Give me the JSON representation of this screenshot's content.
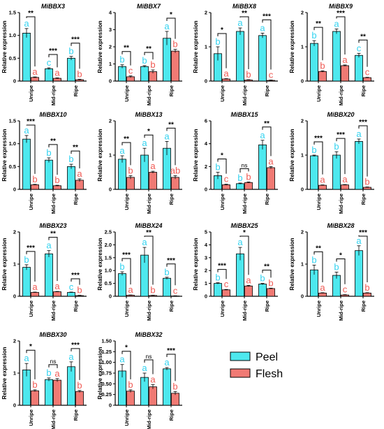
{
  "colors": {
    "peel": "#4DE8EE",
    "flesh": "#F07A74",
    "peel_letter": "#33D3F0",
    "flesh_letter": "#F05A54"
  },
  "legend": {
    "peel": "Peel",
    "flesh": "Flesh"
  },
  "chart_data": [
    {
      "type": "bar",
      "title": "MiBBX3",
      "ylabel": "Relative expression",
      "categories": [
        "Unripe",
        "Mid-ripe",
        "Ripe"
      ],
      "ylim": [
        0,
        1.5
      ],
      "yticks": [
        0,
        0.5,
        1.0,
        1.5
      ],
      "tick_labels": [
        "0",
        "0.5",
        "1.0",
        "1.5"
      ],
      "series": [
        {
          "name": "Peel",
          "values": [
            1.05,
            0.27,
            0.5
          ],
          "errors": [
            0.1,
            0.02,
            0.04
          ],
          "letters": [
            "a",
            "c",
            "b"
          ]
        },
        {
          "name": "Flesh",
          "values": [
            0.08,
            0.06,
            0.03
          ],
          "errors": [
            0.01,
            0.01,
            0.01
          ],
          "letters": [
            "a",
            "a",
            "b"
          ]
        }
      ],
      "significance": [
        "**",
        "***",
        "***"
      ]
    },
    {
      "type": "bar",
      "title": "MiBBX7",
      "ylabel": "Relative expression",
      "categories": [
        "Unripe",
        "Mid-ripe",
        "Ripe"
      ],
      "ylim": [
        0,
        4
      ],
      "yticks": [
        0,
        1,
        2,
        3,
        4
      ],
      "tick_labels": [
        "0",
        "1",
        "2",
        "3",
        "4"
      ],
      "series": [
        {
          "name": "Peel",
          "values": [
            0.85,
            0.85,
            2.5
          ],
          "errors": [
            0.1,
            0.05,
            0.4
          ],
          "letters": [
            "b",
            "b",
            "a"
          ]
        },
        {
          "name": "Flesh",
          "values": [
            0.25,
            0.55,
            1.75
          ],
          "errors": [
            0.05,
            0.1,
            0.1
          ],
          "letters": [
            "c",
            "b",
            "b"
          ]
        }
      ],
      "significance": [
        "**",
        "**",
        "*"
      ]
    },
    {
      "type": "bar",
      "title": "MiBBX8",
      "ylabel": "Relative expression",
      "categories": [
        "Unripe",
        "Mid-ripe",
        "Ripe"
      ],
      "ylim": [
        0,
        2
      ],
      "yticks": [
        0,
        1,
        2
      ],
      "tick_labels": [
        "0",
        "1",
        "2"
      ],
      "series": [
        {
          "name": "Peel",
          "values": [
            0.8,
            1.45,
            1.33
          ],
          "errors": [
            0.2,
            0.1,
            0.07
          ],
          "letters": [
            "b",
            "a",
            "a"
          ]
        },
        {
          "name": "Flesh",
          "values": [
            0.06,
            0.03,
            0.02
          ],
          "errors": [
            0.01,
            0.01,
            0.01
          ],
          "letters": [
            "a",
            "b",
            "c"
          ]
        }
      ],
      "significance": [
        "*",
        "**",
        "***"
      ]
    },
    {
      "type": "bar",
      "title": "MiBBX9",
      "ylabel": "Relative expression",
      "categories": [
        "Unripe",
        "Mid-ripe",
        "Ripe"
      ],
      "ylim": [
        0,
        2
      ],
      "yticks": [
        0,
        1,
        2
      ],
      "tick_labels": [
        "0",
        "1",
        "2"
      ],
      "series": [
        {
          "name": "Peel",
          "values": [
            1.1,
            1.45,
            0.75
          ],
          "errors": [
            0.08,
            0.07,
            0.06
          ],
          "letters": [
            "b",
            "a",
            "c"
          ]
        },
        {
          "name": "Flesh",
          "values": [
            0.28,
            0.45,
            0.1
          ],
          "errors": [
            0.02,
            0.02,
            0.01
          ],
          "letters": [
            "b",
            "a",
            "c"
          ]
        }
      ],
      "significance": [
        "**",
        "***",
        "**"
      ]
    },
    {
      "type": "bar",
      "title": "MiBBX10",
      "ylabel": "Relative expression",
      "categories": [
        "Unripe",
        "Mid-ripe",
        "Ripe"
      ],
      "ylim": [
        0,
        1.5
      ],
      "yticks": [
        0,
        0.5,
        1.0,
        1.5
      ],
      "tick_labels": [
        "0",
        "0.5",
        "1.0",
        "1.5"
      ],
      "series": [
        {
          "name": "Peel",
          "values": [
            1.1,
            0.64,
            0.5
          ],
          "errors": [
            0.08,
            0.05,
            0.05
          ],
          "letters": [
            "a",
            "b",
            "b"
          ]
        },
        {
          "name": "Flesh",
          "values": [
            0.1,
            0.08,
            0.2
          ],
          "errors": [
            0.01,
            0.01,
            0.03
          ],
          "letters": [
            "b",
            "b",
            "a"
          ]
        }
      ],
      "significance": [
        "***",
        "**",
        "**"
      ]
    },
    {
      "type": "bar",
      "title": "MiBBX13",
      "ylabel": "Relative expression",
      "categories": [
        "Unripe",
        "Mid-ripe",
        "Ripe"
      ],
      "ylim": [
        0,
        2
      ],
      "yticks": [
        0,
        1,
        2
      ],
      "tick_labels": [
        "0",
        "1",
        "2"
      ],
      "series": [
        {
          "name": "Peel",
          "values": [
            0.88,
            1.0,
            1.2
          ],
          "errors": [
            0.1,
            0.2,
            0.2
          ],
          "letters": [
            "a",
            "a",
            "a"
          ]
        },
        {
          "name": "Flesh",
          "values": [
            0.35,
            0.5,
            0.35
          ],
          "errors": [
            0.05,
            0.03,
            0.05
          ],
          "letters": [
            "b",
            "a",
            "ab"
          ]
        }
      ],
      "significance": [
        "**",
        "*",
        "**"
      ]
    },
    {
      "type": "bar",
      "title": "MiBBX15",
      "ylabel": "Relative expression",
      "categories": [
        "Unripe",
        "Mid-ripe",
        "Ripe"
      ],
      "ylim": [
        0,
        6
      ],
      "yticks": [
        0,
        2,
        4,
        6
      ],
      "tick_labels": [
        "0",
        "2",
        "4",
        "6"
      ],
      "series": [
        {
          "name": "Peel",
          "values": [
            1.2,
            0.5,
            3.9
          ],
          "errors": [
            0.3,
            0.05,
            0.4
          ],
          "letters": [
            "b",
            "b",
            "a"
          ]
        },
        {
          "name": "Flesh",
          "values": [
            0.4,
            0.6,
            1.9
          ],
          "errors": [
            0.05,
            0.05,
            0.1
          ],
          "letters": [
            "c",
            "b",
            "a"
          ]
        }
      ],
      "significance": [
        "*",
        "ns",
        "**"
      ]
    },
    {
      "type": "bar",
      "title": "MiBBX20",
      "ylabel": "Relative expression",
      "categories": [
        "Unripe",
        "Mid-ripe",
        "Ripe"
      ],
      "ylim": [
        0,
        2
      ],
      "yticks": [
        0,
        1,
        2
      ],
      "tick_labels": [
        "0",
        "1",
        "2"
      ],
      "series": [
        {
          "name": "Peel",
          "values": [
            0.98,
            1.0,
            1.4
          ],
          "errors": [
            0.02,
            0.1,
            0.07
          ],
          "letters": [
            "b",
            "b",
            "a"
          ]
        },
        {
          "name": "Flesh",
          "values": [
            0.12,
            0.13,
            0.06
          ],
          "errors": [
            0.01,
            0.01,
            0.01
          ],
          "letters": [
            "a",
            "a",
            "b"
          ]
        }
      ],
      "significance": [
        "***",
        "***",
        "***"
      ]
    },
    {
      "type": "bar",
      "title": "MiBBX23",
      "ylabel": "Relative expression",
      "categories": [
        "Unripe",
        "Mid-ripe",
        "Ripe"
      ],
      "ylim": [
        0,
        2
      ],
      "yticks": [
        0,
        1,
        2
      ],
      "tick_labels": [
        "0",
        "1",
        "2"
      ],
      "series": [
        {
          "name": "Peel",
          "values": [
            0.9,
            1.32,
            0.12
          ],
          "errors": [
            0.08,
            0.1,
            0.01
          ],
          "letters": [
            "b",
            "a",
            "c"
          ]
        },
        {
          "name": "Flesh",
          "values": [
            0.12,
            0.14,
            0.02
          ],
          "errors": [
            0.01,
            0.01,
            0.01
          ],
          "letters": [
            "a",
            "a",
            "b"
          ]
        }
      ],
      "significance": [
        "***",
        "**",
        "***"
      ]
    },
    {
      "type": "bar",
      "title": "MiBBX24",
      "ylabel": "Relative expression",
      "categories": [
        "Unripe",
        "Mid-ripe",
        "Ripe"
      ],
      "ylim": [
        0,
        2.5
      ],
      "yticks": [
        0,
        0.5,
        1.0,
        1.5,
        2.0,
        2.5
      ],
      "tick_labels": [
        "0",
        "0.5",
        "1.0",
        "1.5",
        "2.0",
        "2.5"
      ],
      "series": [
        {
          "name": "Peel",
          "values": [
            0.88,
            1.6,
            0.7
          ],
          "errors": [
            0.07,
            0.3,
            0.04
          ],
          "letters": [
            "b",
            "a",
            "b"
          ]
        },
        {
          "name": "Flesh",
          "values": [
            0.04,
            0.03,
            0.01
          ],
          "errors": [
            0.01,
            0.01,
            0.01
          ],
          "letters": [
            "a",
            "b",
            "c"
          ]
        }
      ],
      "significance": [
        "***",
        "**",
        "***"
      ]
    },
    {
      "type": "bar",
      "title": "MiBBX25",
      "ylabel": "Relative expression",
      "categories": [
        "Unripe",
        "Mid-ripe",
        "Ripe"
      ],
      "ylim": [
        0,
        5
      ],
      "yticks": [
        0,
        1,
        2,
        3,
        4,
        5
      ],
      "tick_labels": [
        "0",
        "1",
        "2",
        "3",
        "4",
        "5"
      ],
      "series": [
        {
          "name": "Peel",
          "values": [
            1.0,
            3.3,
            0.95
          ],
          "errors": [
            0.05,
            0.5,
            0.05
          ],
          "letters": [
            "b",
            "a",
            "b"
          ]
        },
        {
          "name": "Flesh",
          "values": [
            0.5,
            0.8,
            0.6
          ],
          "errors": [
            0.03,
            0.05,
            0.03
          ],
          "letters": [
            "c",
            "a",
            "b"
          ]
        }
      ],
      "significance": [
        "***",
        "*",
        "**"
      ]
    },
    {
      "type": "bar",
      "title": "MiBBX28",
      "ylabel": "Relative expression",
      "categories": [
        "Unripe",
        "Mid-ripe",
        "Ripe"
      ],
      "ylim": [
        0,
        2
      ],
      "yticks": [
        0,
        1,
        2
      ],
      "tick_labels": [
        "0",
        "1",
        "2"
      ],
      "series": [
        {
          "name": "Peel",
          "values": [
            0.82,
            0.65,
            1.42
          ],
          "errors": [
            0.15,
            0.1,
            0.15
          ],
          "letters": [
            "b",
            "b",
            "a"
          ]
        },
        {
          "name": "Flesh",
          "values": [
            0.1,
            0.04,
            0.1
          ],
          "errors": [
            0.01,
            0.01,
            0.01
          ],
          "letters": [
            "a",
            "c",
            "b"
          ]
        }
      ],
      "significance": [
        "**",
        "*",
        "***"
      ]
    },
    {
      "type": "bar",
      "title": "MiBBX30",
      "ylabel": "Relative expression",
      "categories": [
        "Unripe",
        "Mid-ripe",
        "Ripe"
      ],
      "ylim": [
        0,
        2
      ],
      "yticks": [
        0,
        1,
        2
      ],
      "tick_labels": [
        "0",
        "1",
        "2"
      ],
      "series": [
        {
          "name": "Peel",
          "values": [
            1.1,
            0.8,
            1.2
          ],
          "errors": [
            0.2,
            0.05,
            0.15
          ],
          "letters": [
            "a",
            "b",
            "a"
          ]
        },
        {
          "name": "Flesh",
          "values": [
            0.45,
            0.78,
            0.43
          ],
          "errors": [
            0.03,
            0.05,
            0.03
          ],
          "letters": [
            "b",
            "a",
            "b"
          ]
        }
      ],
      "significance": [
        "*",
        "ns",
        "***"
      ]
    },
    {
      "type": "bar",
      "title": "MiBBX32",
      "ylabel": "Relative expression",
      "categories": [
        "Unripe",
        "Mid-ripe",
        "Ripe"
      ],
      "ylim": [
        0,
        1.5
      ],
      "yticks": [
        0,
        0.25,
        0.5,
        0.75,
        1.0,
        1.25,
        1.5
      ],
      "tick_labels": [
        "0",
        "0.25",
        "0.50",
        "0.75",
        "1.00",
        "1.25",
        "1.50"
      ],
      "series": [
        {
          "name": "Peel",
          "values": [
            0.8,
            0.65,
            0.85
          ],
          "errors": [
            0.15,
            0.1,
            0.03
          ],
          "letters": [
            "a",
            "a",
            "a"
          ]
        },
        {
          "name": "Flesh",
          "values": [
            0.33,
            0.43,
            0.28
          ],
          "errors": [
            0.03,
            0.05,
            0.04
          ],
          "letters": [
            "b",
            "a",
            "b"
          ]
        }
      ],
      "significance": [
        "*",
        "ns",
        "***"
      ]
    }
  ]
}
